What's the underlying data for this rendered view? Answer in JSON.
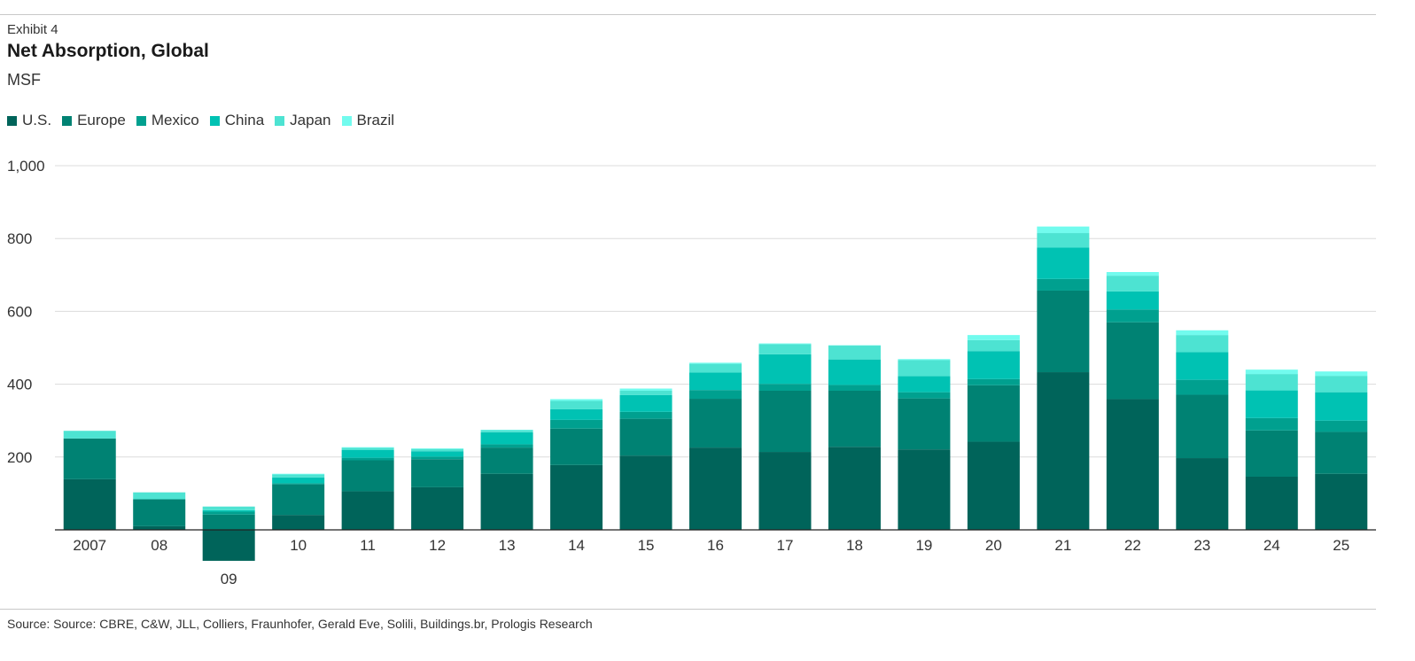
{
  "header": {
    "exhibit": "Exhibit 4",
    "title": "Net Absorption, Global",
    "unit": "MSF"
  },
  "source": "Source: Source: CBRE, C&W, JLL, Colliers, Fraunhofer, Gerald Eve, Solili, Buildings.br, Prologis Research",
  "chart_data": {
    "type": "bar",
    "stacked": true,
    "title": "Net Absorption, Global",
    "ylabel": "MSF",
    "xlabel": "",
    "ylim": [
      0,
      1000
    ],
    "yticks": [
      0,
      200,
      400,
      600,
      800,
      1000
    ],
    "ytick_labels": [
      "",
      "200",
      "400",
      "600",
      "800",
      "1,000"
    ],
    "grid": true,
    "legend": "top-left",
    "categories": [
      "2007",
      "08",
      "09",
      "10",
      "11",
      "12",
      "13",
      "14",
      "15",
      "16",
      "17",
      "18",
      "19",
      "20",
      "21",
      "22",
      "23",
      "24",
      "25"
    ],
    "series": [
      {
        "name": "U.S.",
        "color": "#00645a",
        "values": [
          139,
          10,
          -85,
          41,
          106,
          117,
          154,
          178,
          204,
          226,
          214,
          228,
          221,
          242,
          433,
          359,
          197,
          146,
          154
        ]
      },
      {
        "name": "Europe",
        "color": "#008273",
        "values": [
          112,
          74,
          42,
          84,
          85,
          77,
          72,
          100,
          101,
          134,
          168,
          154,
          140,
          155,
          224,
          211,
          174,
          127,
          115
        ]
      },
      {
        "name": "Mexico",
        "color": "#00a08f",
        "values": [
          0,
          0,
          8,
          3,
          7,
          7,
          9,
          24,
          19,
          24,
          19,
          16,
          17,
          17,
          32,
          35,
          41,
          34,
          31
        ]
      },
      {
        "name": "China",
        "color": "#00c2b3",
        "values": [
          0,
          0,
          4,
          16,
          21,
          15,
          33,
          29,
          46,
          48,
          81,
          70,
          44,
          77,
          86,
          50,
          76,
          76,
          78
        ]
      },
      {
        "name": "Japan",
        "color": "#4de3d2",
        "values": [
          21,
          19,
          10,
          8,
          6,
          6,
          6,
          23,
          12,
          24,
          28,
          38,
          44,
          30,
          40,
          43,
          47,
          45,
          45
        ]
      },
      {
        "name": "Brazil",
        "color": "#72fbee",
        "values": [
          0,
          0,
          0,
          2,
          2,
          2,
          1,
          5,
          6,
          3,
          2,
          1,
          3,
          14,
          18,
          10,
          13,
          12,
          12
        ]
      }
    ]
  }
}
